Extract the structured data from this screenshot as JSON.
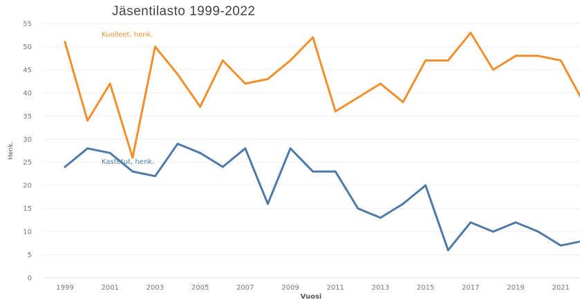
{
  "chart_data": {
    "type": "line",
    "title": "Jäsentilasto 1999-2022",
    "xlabel": "Vuosi",
    "ylabel": "Henk.",
    "ylim": [
      0,
      55
    ],
    "y_ticks": [
      "0",
      "5",
      "10",
      "15",
      "20",
      "25",
      "30",
      "35",
      "40",
      "45",
      "50",
      "55"
    ],
    "x": [
      1999,
      2000,
      2001,
      2002,
      2003,
      2004,
      2005,
      2006,
      2007,
      2008,
      2009,
      2010,
      2011,
      2012,
      2013,
      2014,
      2015,
      2016,
      2017,
      2018,
      2019,
      2020,
      2021,
      2022
    ],
    "x_ticks": [
      "1999",
      "2001",
      "2003",
      "2005",
      "2007",
      "2009",
      "2011",
      "2013",
      "2015",
      "2017",
      "2019",
      "2021"
    ],
    "grid": true,
    "series": [
      {
        "name": "Kuolleet, henk.",
        "color": "#f28e2b",
        "values": [
          51,
          34,
          42,
          26,
          50,
          44,
          37,
          47,
          42,
          43,
          47,
          52,
          36,
          39,
          42,
          38,
          47,
          47,
          53,
          45,
          48,
          48,
          47,
          38
        ]
      },
      {
        "name": "Kastetut, henk.",
        "color": "#4e79a7",
        "values": [
          24,
          28,
          27,
          23,
          22,
          29,
          27,
          24,
          28,
          16,
          28,
          23,
          23,
          15,
          13,
          16,
          20,
          6,
          12,
          10,
          12,
          10,
          7,
          8
        ]
      }
    ]
  }
}
